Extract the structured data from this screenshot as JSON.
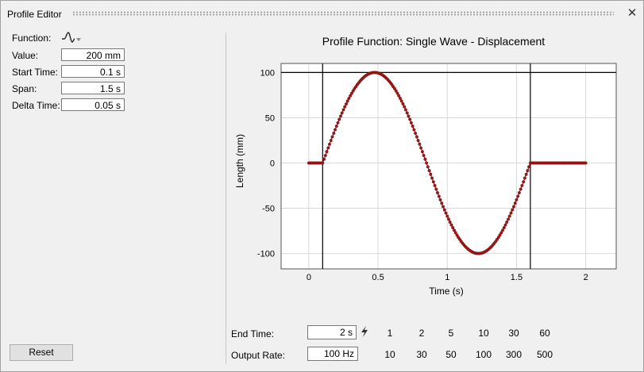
{
  "window": {
    "title": "Profile Editor",
    "close_glyph": "✕"
  },
  "left_panel": {
    "function_label": "Function:",
    "function_icon": "single-wave-icon",
    "fields": [
      {
        "label": "Value:",
        "value": "200 mm"
      },
      {
        "label": "Start Time:",
        "value": "0.1 s"
      },
      {
        "label": "Span:",
        "value": "1.5 s"
      },
      {
        "label": "Delta Time:",
        "value": "0.05 s"
      }
    ],
    "reset_label": "Reset"
  },
  "chart_data": {
    "type": "scatter",
    "title": "Profile Function: Single Wave - Displacement",
    "xlabel": "Time (s)",
    "ylabel": "Length (mm)",
    "xlim": [
      -0.2,
      2.22
    ],
    "ylim": [
      -117,
      110
    ],
    "x_ticks": [
      0,
      0.5,
      1,
      1.5,
      2
    ],
    "x_tick_labels": [
      "0",
      "0.5",
      "1",
      "1.5",
      "2"
    ],
    "y_ticks": [
      -100,
      -50,
      0,
      50,
      100
    ],
    "y_tick_labels": [
      "-100",
      "-50",
      "0",
      "50",
      "100"
    ],
    "grid": true,
    "series": [
      {
        "function": "single-wave",
        "amplitude": 100,
        "start": 0.1,
        "span": 1.5,
        "x_start": 0,
        "x_end": 2,
        "step": 0.01,
        "color": "#a31515"
      }
    ],
    "vertical_markers": [
      0.1,
      1.6
    ],
    "horizontal_marker": 100
  },
  "bottom": {
    "end_time_label": "End Time:",
    "end_time_value": "2 s",
    "end_time_options": [
      "1",
      "2",
      "5",
      "10",
      "30",
      "60"
    ],
    "output_rate_label": "Output Rate:",
    "output_rate_value": "100 Hz",
    "output_rate_options": [
      "10",
      "30",
      "50",
      "100",
      "300",
      "500"
    ]
  }
}
